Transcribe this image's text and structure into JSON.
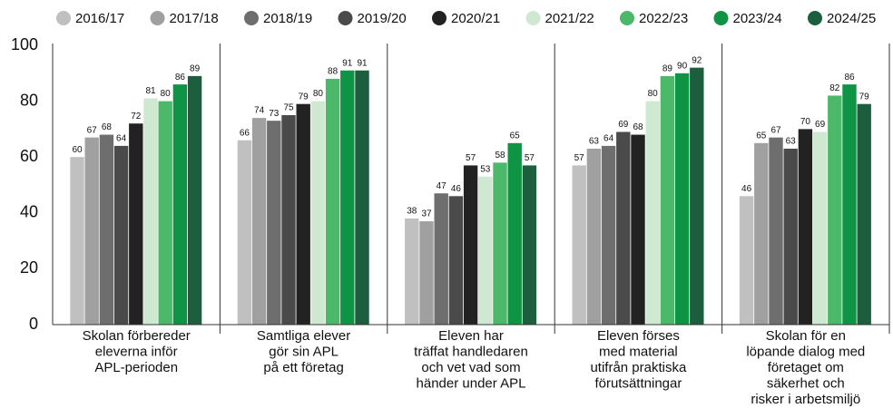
{
  "chart_data": {
    "type": "bar",
    "categories": [
      [
        "Skolan förbereder",
        "eleverna inför",
        "APL-perioden"
      ],
      [
        "Samtliga elever",
        "gör sin APL",
        "på ett företag"
      ],
      [
        "Eleven har",
        "träffat handledaren",
        "och vet vad som",
        "händer under APL"
      ],
      [
        "Eleven förses",
        "med material",
        "utifrån praktiska",
        "förutsättningar"
      ],
      [
        "Skolan för en",
        "löpande dialog med",
        "företaget om",
        "säkerhet och",
        "risker i arbetsmiljö"
      ]
    ],
    "series": [
      {
        "name": "2016/17",
        "color": "#c0c0c0",
        "values": [
          60,
          66,
          38,
          57,
          46
        ]
      },
      {
        "name": "2017/18",
        "color": "#a0a0a0",
        "values": [
          67,
          74,
          37,
          63,
          65
        ]
      },
      {
        "name": "2018/19",
        "color": "#6e6e6e",
        "values": [
          68,
          73,
          47,
          64,
          67
        ]
      },
      {
        "name": "2019/20",
        "color": "#4a4a4a",
        "values": [
          64,
          75,
          46,
          69,
          63
        ]
      },
      {
        "name": "2020/21",
        "color": "#222222",
        "values": [
          72,
          79,
          57,
          68,
          70
        ]
      },
      {
        "name": "2021/22",
        "color": "#cfe8d2",
        "values": [
          81,
          80,
          53,
          80,
          69
        ]
      },
      {
        "name": "2022/23",
        "color": "#4cb86a",
        "values": [
          80,
          88,
          58,
          89,
          82
        ]
      },
      {
        "name": "2023/24",
        "color": "#0f9446",
        "values": [
          86,
          91,
          65,
          90,
          86
        ]
      },
      {
        "name": "2024/25",
        "color": "#1d5e3e",
        "values": [
          89,
          91,
          57,
          92,
          79
        ]
      }
    ],
    "ylim": [
      0,
      100
    ],
    "yticks": [
      0,
      20,
      40,
      60,
      80,
      100
    ],
    "legend": "top"
  }
}
